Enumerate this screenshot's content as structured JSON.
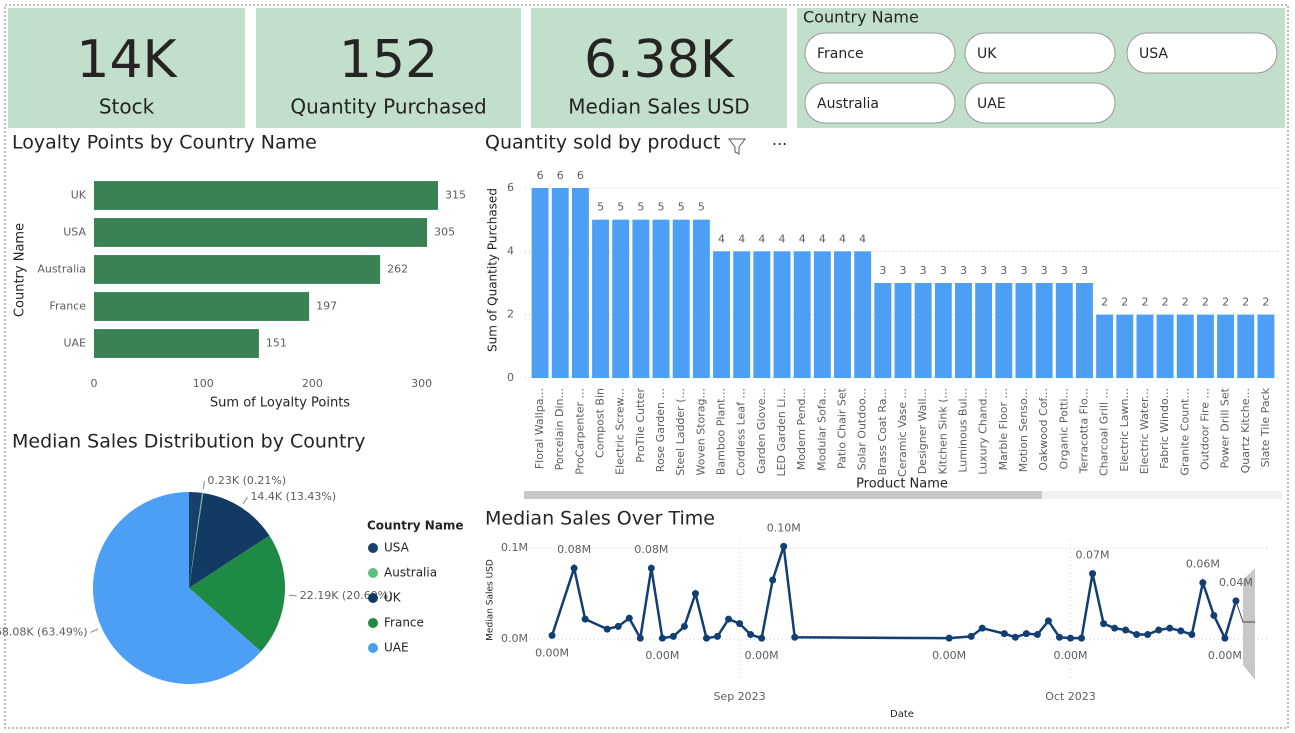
{
  "cards": [
    {
      "value": "14K",
      "label": "Stock"
    },
    {
      "value": "152",
      "label": "Quantity Purchased"
    },
    {
      "value": "6.38K",
      "label": "Median Sales USD"
    }
  ],
  "slicer": {
    "title": "Country Name",
    "options": [
      "France",
      "UK",
      "USA",
      "Australia",
      "UAE"
    ]
  },
  "chart_data": [
    {
      "type": "hbar",
      "title": "Loyalty Points by Country Name",
      "categories": [
        "UK",
        "USA",
        "Australia",
        "France",
        "UAE"
      ],
      "values": [
        315,
        305,
        262,
        197,
        151
      ],
      "color": "#3a8156",
      "xlim": [
        0,
        315
      ],
      "xticks": [
        0,
        100,
        200,
        300
      ],
      "xlabel": "Sum of Loyalty Points",
      "ylabel": "Country Name"
    },
    {
      "type": "bar",
      "title": "Quantity sold by product",
      "categories": [
        "Floral Wallpa...",
        "Porcelain Din...",
        "ProCarpenter ...",
        "Compost Bin",
        "Electric Screw...",
        "ProTile Cutter",
        "Rose Garden ...",
        "Steel Ladder (...",
        "Woven Storag...",
        "Bamboo Plant...",
        "Cordless Leaf ...",
        "Garden Glove...",
        "LED Garden Li...",
        "Modern Pend...",
        "Modular Sofa...",
        "Patio Chair Set",
        "Solar Outdoo...",
        "Brass Coat Ra...",
        "Ceramic Vase ...",
        "Designer Wall...",
        "Kitchen Sink (...",
        "Luminous Bul...",
        "Luxury Chand...",
        "Marble Floor ...",
        "Motion Senso...",
        "Oakwood Cof...",
        "Organic Potti...",
        "Terracotta Flo...",
        "Charcoal Grill ...",
        "Electric Lawn...",
        "Electric Water...",
        "Fabric Windo...",
        "Granite Count...",
        "Outdoor Fire ...",
        "Power Drill Set",
        "Quartz Kitche...",
        "Slate Tile Pack"
      ],
      "values": [
        6,
        6,
        6,
        5,
        5,
        5,
        5,
        5,
        5,
        4,
        4,
        4,
        4,
        4,
        4,
        4,
        4,
        3,
        3,
        3,
        3,
        3,
        3,
        3,
        3,
        3,
        3,
        3,
        2,
        2,
        2,
        2,
        2,
        2,
        2,
        2,
        2
      ],
      "color": "#4d9ff5",
      "ylim": [
        0,
        6
      ],
      "yticks": [
        0,
        2,
        4,
        6
      ],
      "grid": true,
      "xlabel": "Product Name",
      "ylabel": "Sum of Quantity Purchased"
    },
    {
      "type": "pie",
      "title": "Median Sales Distribution by Country",
      "legend_title": "Country Name",
      "categories": [
        "USA",
        "Australia",
        "UK",
        "France",
        "UAE"
      ],
      "values": [
        2330,
        230,
        14400,
        22190,
        68080
      ],
      "value_labels": [
        null,
        "0.23K (0.21%)",
        "14.4K (13.43%)",
        "22.19K (20.69%)",
        "68.08K (63.49%)"
      ],
      "colors": [
        "#1b3f6d",
        "#5fbf7f",
        "#123a63",
        "#1e8a43",
        "#4d9ff5"
      ]
    },
    {
      "type": "line",
      "title": "Median Sales Over Time",
      "xlabel": "Date",
      "ylabel": "Median Sales USD",
      "color": "#123f73",
      "grid": true,
      "x": [
        "2023-08-15",
        "2023-08-17",
        "2023-08-18",
        "2023-08-20",
        "2023-08-21",
        "2023-08-22",
        "2023-08-23",
        "2023-08-24",
        "2023-08-25",
        "2023-08-26",
        "2023-08-27",
        "2023-08-28",
        "2023-08-29",
        "2023-08-30",
        "2023-08-31",
        "2023-09-01",
        "2023-09-02",
        "2023-09-03",
        "2023-09-04",
        "2023-09-05",
        "2023-09-06",
        "2023-09-20",
        "2023-09-22",
        "2023-09-23",
        "2023-09-25",
        "2023-09-26",
        "2023-09-27",
        "2023-09-28",
        "2023-09-29",
        "2023-09-30",
        "2023-10-01",
        "2023-10-02",
        "2023-10-03",
        "2023-10-04",
        "2023-10-05",
        "2023-10-06",
        "2023-10-07",
        "2023-10-08",
        "2023-10-09",
        "2023-10-10",
        "2023-10-11",
        "2023-10-12",
        "2023-10-13",
        "2023-10-14",
        "2023-10-15",
        "2023-10-16"
      ],
      "values": [
        4000,
        78000,
        22000,
        11000,
        14000,
        23000,
        1000,
        78000,
        1000,
        3000,
        14000,
        50000,
        1000,
        3000,
        22000,
        17000,
        5000,
        1000,
        65000,
        102000,
        2000,
        1000,
        3000,
        12000,
        6000,
        2000,
        6000,
        5000,
        20000,
        2000,
        1000,
        1000,
        72000,
        17000,
        12000,
        10000,
        5000,
        5000,
        10000,
        12000,
        9000,
        5000,
        62000,
        26000,
        1000,
        42000
      ],
      "value_labels": [
        "0.00M",
        "0.08M",
        null,
        null,
        null,
        null,
        null,
        "0.08M",
        "0.00M",
        null,
        null,
        null,
        null,
        null,
        null,
        null,
        null,
        "0.00M",
        null,
        "0.10M",
        null,
        "0.00M",
        null,
        null,
        null,
        null,
        null,
        null,
        null,
        null,
        "0.00M",
        null,
        "0.07M",
        null,
        null,
        null,
        null,
        null,
        null,
        null,
        null,
        null,
        "0.06M",
        null,
        "0.00M",
        "0.04M"
      ],
      "xlim": [
        "2023-08-13",
        "2023-10-18"
      ],
      "xticks": [
        {
          "value": "2023-09-01",
          "label": "Sep 2023"
        },
        {
          "value": "2023-10-01",
          "label": "Oct 2023"
        }
      ],
      "ylim": [
        -23000,
        109000
      ],
      "yticks": [
        {
          "value": 0,
          "label": "0.0M"
        },
        {
          "value": 100000,
          "label": "0.1M"
        }
      ]
    }
  ]
}
